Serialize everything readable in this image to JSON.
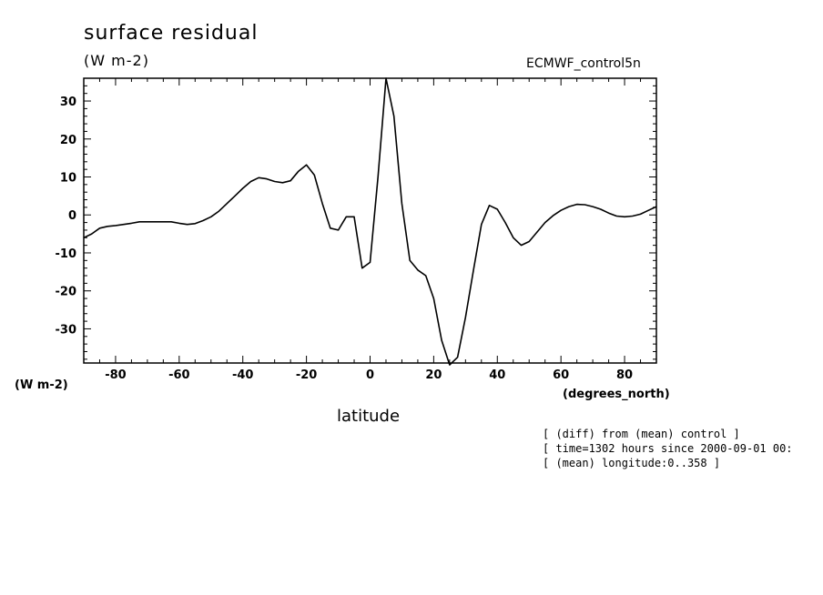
{
  "chart_data": {
    "type": "line",
    "title": "surface residual",
    "units": "(W m-2)",
    "source": "ECMWF_control5n",
    "xlabel": "latitude",
    "x_units": "(degrees_north)",
    "ylabel": "(W m-2)",
    "xlim": [
      -90,
      90
    ],
    "ylim": [
      -39,
      36
    ],
    "x_ticks": [
      -80,
      -60,
      -40,
      -20,
      0,
      20,
      40,
      60,
      80
    ],
    "x_tick_labels": [
      "-80",
      "-60",
      "-40",
      "-20",
      "0",
      "20",
      "40",
      "60",
      "80"
    ],
    "y_ticks": [
      30,
      20,
      10,
      0,
      -10,
      -20,
      -30
    ],
    "y_tick_labels": [
      "30",
      "20",
      "10",
      "0",
      "-10",
      "-20",
      "-30"
    ],
    "grid": false,
    "series": [
      {
        "x": [
          -90,
          -87.5,
          -85,
          -82.5,
          -80,
          -77.5,
          -75,
          -72.5,
          -70,
          -67.5,
          -65,
          -62.5,
          -60,
          -57.5,
          -55,
          -52.5,
          -50,
          -47.5,
          -45,
          -42.5,
          -40,
          -37.5,
          -35,
          -32.5,
          -30,
          -27.5,
          -25,
          -22.5,
          -20,
          -17.5,
          -15,
          -12.5,
          -10,
          -7.5,
          -5,
          -2.5,
          0,
          2.5,
          5,
          7.5,
          10,
          12.5,
          15,
          17.5,
          20,
          22.5,
          25,
          27.5,
          30,
          32.5,
          35,
          37.5,
          40,
          42.5,
          45,
          47.5,
          50,
          52.5,
          55,
          57.5,
          60,
          62.5,
          65,
          67.5,
          70,
          72.5,
          75,
          77.5,
          80,
          82.5,
          85,
          87.5,
          90
        ],
        "y": [
          -6,
          -5,
          -3.5,
          -3,
          -2.8,
          -2.5,
          -2.2,
          -1.8,
          -1.8,
          -1.8,
          -1.8,
          -1.8,
          -2.2,
          -2.5,
          -2.3,
          -1.5,
          -0.5,
          1,
          3,
          5,
          7,
          8.8,
          9.8,
          9.5,
          8.8,
          8.5,
          9,
          11.5,
          13.2,
          10.5,
          3,
          -3.5,
          -4,
          -0.5,
          -0.5,
          -14,
          -12.5,
          10,
          36,
          26,
          3,
          -12,
          -14.5,
          -16,
          -22,
          -33,
          -39.5,
          -37.5,
          -27,
          -14.5,
          -2.5,
          2.5,
          1.5,
          -2,
          -6,
          -8,
          -7,
          -4.5,
          -2,
          -0.2,
          1.2,
          2.2,
          2.8,
          2.7,
          2.2,
          1.5,
          0.5,
          -0.3,
          -0.5,
          -0.3,
          0.2,
          1.2,
          2.2
        ]
      }
    ],
    "footnotes": [
      "[ (diff) from (mean) control ]",
      "[ time=1302 hours since 2000-09-01 00:",
      "[ (mean) longitude:0..358 ]"
    ]
  }
}
